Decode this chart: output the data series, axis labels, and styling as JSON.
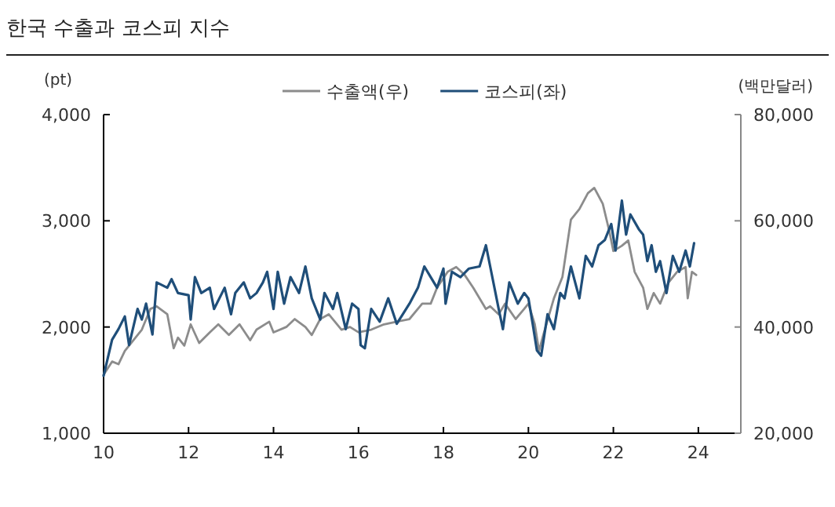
{
  "chart_data": {
    "type": "line",
    "title": "한국 수출과 코스피 지수",
    "ylabel": "(pt)",
    "y2label": "(백만달러)",
    "legend": "top",
    "xlim": [
      2010,
      2025
    ],
    "xticks": [
      {
        "value": 2010,
        "label": "10"
      },
      {
        "value": 2012,
        "label": "12"
      },
      {
        "value": 2014,
        "label": "14"
      },
      {
        "value": 2016,
        "label": "16"
      },
      {
        "value": 2018,
        "label": "18"
      },
      {
        "value": 2020,
        "label": "20"
      },
      {
        "value": 2022,
        "label": "22"
      },
      {
        "value": 2024,
        "label": "24"
      }
    ],
    "ylim": [
      1000,
      4000
    ],
    "yticks": [
      {
        "value": 1000,
        "label": "1,000"
      },
      {
        "value": 2000,
        "label": "2,000"
      },
      {
        "value": 3000,
        "label": "3,000"
      },
      {
        "value": 4000,
        "label": "4,000"
      }
    ],
    "y2lim": [
      20000,
      80000
    ],
    "y2ticks": [
      {
        "value": 20000,
        "label": "20,000"
      },
      {
        "value": 40000,
        "label": "40,000"
      },
      {
        "value": 60000,
        "label": "60,000"
      },
      {
        "value": 80000,
        "label": "80,000"
      }
    ],
    "series": [
      {
        "name": "수출액(우)",
        "color": "#8c8c8c",
        "axis": "y2",
        "x": [
          2010.0,
          2010.2,
          2010.35,
          2010.5,
          2010.7,
          2010.9,
          2011.1,
          2011.25,
          2011.5,
          2011.65,
          2011.75,
          2011.9,
          2012.05,
          2012.25,
          2012.5,
          2012.7,
          2012.95,
          2013.2,
          2013.45,
          2013.6,
          2013.9,
          2014.0,
          2014.3,
          2014.5,
          2014.75,
          2014.9,
          2015.1,
          2015.3,
          2015.6,
          2015.8,
          2016.0,
          2016.3,
          2016.6,
          2016.9,
          2017.2,
          2017.5,
          2017.7,
          2017.85,
          2018.1,
          2018.3,
          2018.5,
          2018.7,
          2019.0,
          2019.1,
          2019.3,
          2019.45,
          2019.7,
          2019.9,
          2020.0,
          2020.15,
          2020.25,
          2020.35,
          2020.6,
          2020.8,
          2021.0,
          2021.2,
          2021.4,
          2021.55,
          2021.75,
          2021.9,
          2022.0,
          2022.2,
          2022.35,
          2022.5,
          2022.7,
          2022.8,
          2022.95,
          2023.1,
          2023.3,
          2023.5,
          2023.7,
          2023.75,
          2023.85,
          2023.95
        ],
        "values": [
          31000,
          33500,
          33000,
          35500,
          37500,
          39500,
          43400,
          43900,
          42400,
          36000,
          38000,
          36500,
          40500,
          37000,
          39000,
          40500,
          38500,
          40500,
          37500,
          39500,
          41000,
          39000,
          40000,
          41500,
          40000,
          38500,
          41500,
          42400,
          39500,
          40000,
          39000,
          39500,
          40500,
          41000,
          41500,
          44400,
          44400,
          47400,
          50400,
          51300,
          49800,
          47400,
          43400,
          43900,
          42400,
          44400,
          41500,
          43400,
          44400,
          40500,
          35500,
          38500,
          45400,
          49400,
          60200,
          62200,
          65200,
          66200,
          63200,
          58200,
          54300,
          55300,
          56300,
          50400,
          47400,
          43400,
          46400,
          44400,
          48400,
          50400,
          51300,
          45400,
          50400,
          49800
        ]
      },
      {
        "name": "코스피(좌)",
        "color": "#1f4e79",
        "x": [
          2010.0,
          2010.2,
          2010.35,
          2010.5,
          2010.6,
          2010.8,
          2010.9,
          2011.0,
          2011.15,
          2011.25,
          2011.5,
          2011.6,
          2011.75,
          2012.0,
          2012.05,
          2012.15,
          2012.3,
          2012.5,
          2012.6,
          2012.85,
          2013.0,
          2013.1,
          2013.3,
          2013.45,
          2013.6,
          2013.75,
          2013.85,
          2014.0,
          2014.1,
          2014.25,
          2014.4,
          2014.6,
          2014.75,
          2014.9,
          2015.1,
          2015.2,
          2015.4,
          2015.5,
          2015.7,
          2015.85,
          2016.0,
          2016.05,
          2016.15,
          2016.3,
          2016.5,
          2016.7,
          2016.9,
          2017.2,
          2017.4,
          2017.55,
          2017.7,
          2017.85,
          2018.0,
          2018.05,
          2018.2,
          2018.4,
          2018.6,
          2018.85,
          2019.0,
          2019.1,
          2019.3,
          2019.4,
          2019.55,
          2019.75,
          2019.9,
          2020.0,
          2020.1,
          2020.2,
          2020.3,
          2020.45,
          2020.6,
          2020.75,
          2020.85,
          2021.0,
          2021.2,
          2021.35,
          2021.5,
          2021.65,
          2021.8,
          2021.95,
          2022.05,
          2022.2,
          2022.3,
          2022.4,
          2022.6,
          2022.7,
          2022.8,
          2022.9,
          2023.0,
          2023.1,
          2023.25,
          2023.4,
          2023.55,
          2023.7,
          2023.8,
          2023.9
        ],
        "values": [
          1540,
          1880,
          1980,
          2100,
          1830,
          2170,
          2070,
          2220,
          1930,
          2420,
          2370,
          2450,
          2320,
          2300,
          2070,
          2470,
          2320,
          2370,
          2170,
          2370,
          2120,
          2320,
          2420,
          2270,
          2320,
          2420,
          2520,
          2170,
          2520,
          2220,
          2470,
          2320,
          2570,
          2270,
          2070,
          2320,
          2170,
          2320,
          1980,
          2220,
          2170,
          1830,
          1800,
          2170,
          2050,
          2270,
          2030,
          2220,
          2370,
          2570,
          2470,
          2370,
          2550,
          2220,
          2520,
          2470,
          2550,
          2570,
          2770,
          2570,
          2170,
          1980,
          2420,
          2220,
          2320,
          2270,
          2030,
          1780,
          1730,
          2120,
          1980,
          2320,
          2270,
          2570,
          2270,
          2670,
          2570,
          2770,
          2820,
          2970,
          2720,
          3190,
          2870,
          3060,
          2920,
          2870,
          2620,
          2770,
          2520,
          2620,
          2320,
          2670,
          2520,
          2720,
          2570,
          2790
        ]
      }
    ]
  }
}
